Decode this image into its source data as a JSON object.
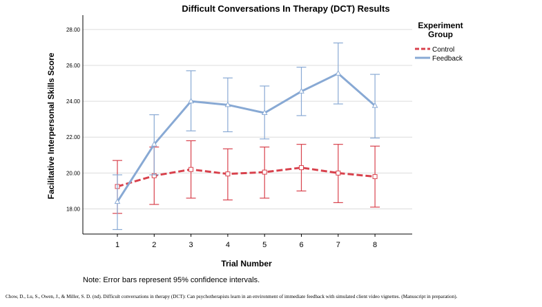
{
  "chart_data": {
    "type": "line",
    "title": "Difficult Conversations In Therapy (DCT) Results",
    "xlabel": "Trial Number",
    "ylabel": "Facilitative Interpersonal Skills Score",
    "x": [
      1,
      2,
      3,
      4,
      5,
      6,
      7,
      8
    ],
    "x_tick_labels": [
      "1",
      "2",
      "3",
      "4",
      "5",
      "6",
      "7",
      "8"
    ],
    "ylim": [
      16.6,
      28.8
    ],
    "y_ticks": [
      18,
      20,
      22,
      24,
      26,
      28
    ],
    "y_tick_labels": [
      "18.00",
      "20.00",
      "22.00",
      "24.00",
      "26.00",
      "28.00"
    ],
    "grid": "horizontal",
    "legend": {
      "title_line1": "Experiment",
      "title_line2": "Group",
      "placement": "top-right"
    },
    "series": [
      {
        "name": "Control",
        "color": "#d8414c",
        "style": "dashed",
        "values": [
          19.25,
          19.85,
          20.2,
          19.95,
          20.05,
          20.3,
          20.0,
          19.8
        ],
        "ci_low": [
          17.75,
          18.25,
          18.6,
          18.5,
          18.6,
          19.0,
          18.35,
          18.1
        ],
        "ci_high": [
          20.7,
          21.45,
          21.8,
          21.35,
          21.45,
          21.6,
          21.6,
          21.5
        ]
      },
      {
        "name": "Feedback",
        "color": "#88a9d4",
        "style": "solid",
        "values": [
          18.4,
          21.6,
          24.0,
          23.8,
          23.35,
          24.55,
          25.55,
          23.75
        ],
        "ci_low": [
          16.85,
          19.9,
          22.35,
          22.3,
          21.9,
          23.2,
          23.85,
          21.95
        ],
        "ci_high": [
          19.9,
          23.25,
          25.7,
          25.3,
          24.85,
          25.9,
          27.25,
          25.5
        ]
      }
    ]
  },
  "note": "Note: Error bars represent 95% confidence intervals.",
  "citation": "Chow, D., Lu, S., Owen, J., & Miller, S. D. (nd). Difficult conversations in therapy (DCT): Can psychotherapists learn in an environment of immediate feedback with simulated client video vignettes. (Manuscript in preparation)."
}
